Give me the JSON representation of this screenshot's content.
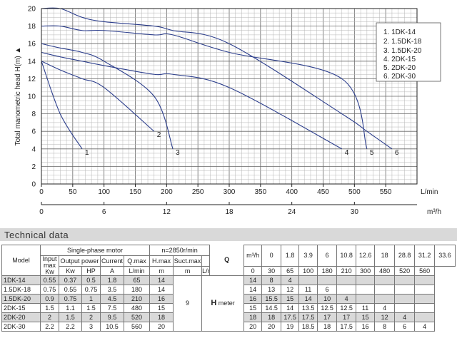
{
  "chart_data": {
    "type": "line",
    "ylabel": "Total manometric head H(m) ▲",
    "xlabel": "L/min",
    "x2label": "m³/h",
    "xlim": [
      0,
      600
    ],
    "ylim": [
      0,
      20
    ],
    "x_ticks": [
      "0",
      "50",
      "100",
      "150",
      "200",
      "250",
      "300",
      "350",
      "400",
      "450",
      "500",
      "550"
    ],
    "x2_ticks": [
      "0",
      "6",
      "12",
      "18",
      "24",
      "30"
    ],
    "y_ticks": [
      "0",
      "2",
      "4",
      "6",
      "8",
      "10",
      "12",
      "14",
      "16",
      "18",
      "20"
    ],
    "grid": true,
    "series": [
      {
        "name": "1DK-14",
        "marker": "1",
        "x": [
          0,
          30,
          65
        ],
        "y": [
          14,
          8,
          4
        ]
      },
      {
        "name": "1.5DK-18",
        "marker": "2",
        "x": [
          0,
          30,
          65,
          100,
          180
        ],
        "y": [
          14,
          13,
          12,
          11,
          6
        ]
      },
      {
        "name": "1.5DK-20",
        "marker": "3",
        "x": [
          0,
          30,
          65,
          100,
          180,
          210
        ],
        "y": [
          16,
          15.5,
          15,
          14,
          10,
          4
        ]
      },
      {
        "name": "2DK-15",
        "marker": "4",
        "x": [
          0,
          30,
          65,
          100,
          180,
          210,
          300,
          480
        ],
        "y": [
          15,
          14.5,
          14,
          13.5,
          12.5,
          12.5,
          11,
          4
        ]
      },
      {
        "name": "2DK-20",
        "marker": "5",
        "x": [
          0,
          30,
          65,
          100,
          180,
          210,
          300,
          480,
          520
        ],
        "y": [
          18,
          18,
          17.5,
          17.5,
          17,
          17,
          15,
          12,
          4
        ]
      },
      {
        "name": "2DK-30",
        "marker": "6",
        "x": [
          0,
          30,
          65,
          100,
          180,
          210,
          300,
          480,
          520,
          560
        ],
        "y": [
          20,
          20,
          19,
          18.5,
          18,
          17.5,
          16,
          8,
          6,
          4
        ]
      }
    ],
    "legend": [
      "1. 1DK-14",
      "2. 1.5DK-18",
      "3. 1.5DK-20",
      "4. 2DK-15",
      "5. 2DK-20",
      "6. 2DK-30"
    ],
    "legend_position": "top-right"
  },
  "tech": {
    "title": "Technical data",
    "model": "Model",
    "single_phase": "Single-phase motor",
    "speed": "n=2850r/min",
    "input_max": "Input max",
    "output_power": "Output power",
    "current": "Current",
    "qmax": "Q.max",
    "hmax": "H.max",
    "suct": "Suct.max",
    "q_letter": "Q",
    "m3h": "m³/h",
    "lmin": "L/min",
    "kw": "Kw",
    "hp": "HP",
    "amp": "A",
    "lmin_unit": "L/min",
    "m_unit": "m",
    "m_unit2": "m",
    "suct_value": "9",
    "h_letter": "H",
    "h_meter": " meter",
    "q_m3h": [
      "0",
      "1.8",
      "3.9",
      "6",
      "10.8",
      "12.6",
      "18",
      "28.8",
      "31.2",
      "33.6"
    ],
    "q_lmin": [
      "0",
      "30",
      "65",
      "100",
      "180",
      "210",
      "300",
      "480",
      "520",
      "560"
    ],
    "rows": [
      {
        "model": "1DK-14",
        "kw_in": "0.55",
        "kw": "0.37",
        "hp": "0.5",
        "a": "1.8",
        "qmax": "65",
        "hmax": "14",
        "h": [
          "14",
          "8",
          "4",
          "",
          "",
          "",
          "",
          "",
          "",
          ""
        ]
      },
      {
        "model": "1.5DK-18",
        "kw_in": "0.75",
        "kw": "0.55",
        "hp": "0.75",
        "a": "3.5",
        "qmax": "180",
        "hmax": "14",
        "h": [
          "14",
          "13",
          "12",
          "11",
          "6",
          "",
          "",
          "",
          "",
          ""
        ]
      },
      {
        "model": "1.5DK-20",
        "kw_in": "0.9",
        "kw": "0.75",
        "hp": "1",
        "a": "4.5",
        "qmax": "210",
        "hmax": "16",
        "h": [
          "16",
          "15.5",
          "15",
          "14",
          "10",
          "4",
          "",
          "",
          "",
          ""
        ]
      },
      {
        "model": "2DK-15",
        "kw_in": "1.5",
        "kw": "1.1",
        "hp": "1.5",
        "a": "7.5",
        "qmax": "480",
        "hmax": "15",
        "h": [
          "15",
          "14.5",
          "14",
          "13.5",
          "12.5",
          "12.5",
          "11",
          "4",
          "",
          ""
        ]
      },
      {
        "model": "2DK-20",
        "kw_in": "2",
        "kw": "1.5",
        "hp": "2",
        "a": "9.5",
        "qmax": "520",
        "hmax": "18",
        "h": [
          "18",
          "18",
          "17.5",
          "17.5",
          "17",
          "17",
          "15",
          "12",
          "4",
          ""
        ]
      },
      {
        "model": "2DK-30",
        "kw_in": "2.2",
        "kw": "2.2",
        "hp": "3",
        "a": "10.5",
        "qmax": "560",
        "hmax": "20",
        "h": [
          "20",
          "20",
          "19",
          "18.5",
          "18",
          "17.5",
          "16",
          "8",
          "6",
          "4"
        ]
      }
    ]
  }
}
